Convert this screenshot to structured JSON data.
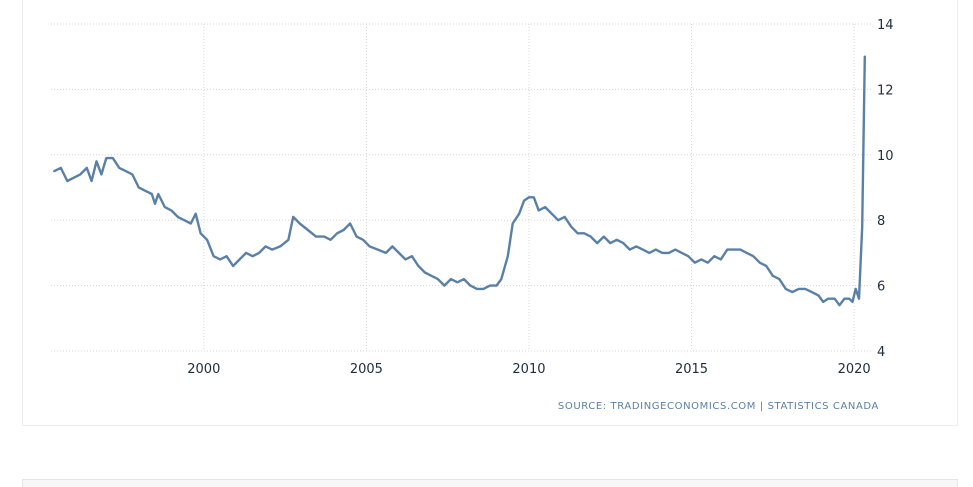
{
  "source": {
    "prefix": "SOURCE:",
    "provider": "TRADINGECONOMICS.COM",
    "separator": "|",
    "origin": "STATISTICS CANADA"
  },
  "colors": {
    "line": "#5b80a8",
    "grid": "#d6d6d6",
    "text": "#1f2d3d",
    "source": "#5a7fa6"
  },
  "chart_data": {
    "type": "line",
    "title": "",
    "xlabel": "",
    "ylabel": "",
    "xlim": [
      1995.3,
      2020.55
    ],
    "ylim": [
      4,
      14
    ],
    "x_ticks": [
      2000,
      2005,
      2010,
      2015,
      2020
    ],
    "x_tick_labels": [
      "2000",
      "2005",
      "2010",
      "2015",
      "2020"
    ],
    "y_ticks": [
      4,
      6,
      8,
      10,
      12,
      14
    ],
    "y_tick_labels": [
      "4",
      "6",
      "8",
      "10",
      "12",
      "14"
    ],
    "y_axis_position": "right",
    "grid": true,
    "legend": "none",
    "series": [
      {
        "points": [
          [
            1995.4,
            9.5
          ],
          [
            1995.6,
            9.6
          ],
          [
            1995.8,
            9.2
          ],
          [
            1996.0,
            9.3
          ],
          [
            1996.2,
            9.4
          ],
          [
            1996.4,
            9.6
          ],
          [
            1996.55,
            9.2
          ],
          [
            1996.7,
            9.8
          ],
          [
            1996.85,
            9.4
          ],
          [
            1997.0,
            9.9
          ],
          [
            1997.2,
            9.9
          ],
          [
            1997.4,
            9.6
          ],
          [
            1997.6,
            9.5
          ],
          [
            1997.8,
            9.4
          ],
          [
            1998.0,
            9.0
          ],
          [
            1998.2,
            8.9
          ],
          [
            1998.4,
            8.8
          ],
          [
            1998.5,
            8.5
          ],
          [
            1998.6,
            8.8
          ],
          [
            1998.8,
            8.4
          ],
          [
            1999.0,
            8.3
          ],
          [
            1999.2,
            8.1
          ],
          [
            1999.4,
            8.0
          ],
          [
            1999.6,
            7.9
          ],
          [
            1999.75,
            8.2
          ],
          [
            1999.9,
            7.6
          ],
          [
            2000.1,
            7.4
          ],
          [
            2000.3,
            6.9
          ],
          [
            2000.5,
            6.8
          ],
          [
            2000.7,
            6.9
          ],
          [
            2000.9,
            6.6
          ],
          [
            2001.1,
            6.8
          ],
          [
            2001.3,
            7.0
          ],
          [
            2001.5,
            6.9
          ],
          [
            2001.7,
            7.0
          ],
          [
            2001.9,
            7.2
          ],
          [
            2002.1,
            7.1
          ],
          [
            2002.35,
            7.2
          ],
          [
            2002.6,
            7.4
          ],
          [
            2002.75,
            8.1
          ],
          [
            2002.95,
            7.9
          ],
          [
            2003.2,
            7.7
          ],
          [
            2003.45,
            7.5
          ],
          [
            2003.7,
            7.5
          ],
          [
            2003.9,
            7.4
          ],
          [
            2004.1,
            7.6
          ],
          [
            2004.3,
            7.7
          ],
          [
            2004.5,
            7.9
          ],
          [
            2004.7,
            7.5
          ],
          [
            2004.9,
            7.4
          ],
          [
            2005.1,
            7.2
          ],
          [
            2005.35,
            7.1
          ],
          [
            2005.6,
            7.0
          ],
          [
            2005.8,
            7.2
          ],
          [
            2006.0,
            7.0
          ],
          [
            2006.2,
            6.8
          ],
          [
            2006.4,
            6.9
          ],
          [
            2006.6,
            6.6
          ],
          [
            2006.8,
            6.4
          ],
          [
            2007.0,
            6.3
          ],
          [
            2007.2,
            6.2
          ],
          [
            2007.4,
            6.0
          ],
          [
            2007.6,
            6.2
          ],
          [
            2007.8,
            6.1
          ],
          [
            2008.0,
            6.2
          ],
          [
            2008.2,
            6.0
          ],
          [
            2008.4,
            5.9
          ],
          [
            2008.6,
            5.9
          ],
          [
            2008.8,
            6.0
          ],
          [
            2009.0,
            6.0
          ],
          [
            2009.15,
            6.2
          ],
          [
            2009.35,
            6.9
          ],
          [
            2009.5,
            7.9
          ],
          [
            2009.7,
            8.2
          ],
          [
            2009.85,
            8.6
          ],
          [
            2010.0,
            8.7
          ],
          [
            2010.15,
            8.7
          ],
          [
            2010.3,
            8.3
          ],
          [
            2010.5,
            8.4
          ],
          [
            2010.7,
            8.2
          ],
          [
            2010.9,
            8.0
          ],
          [
            2011.1,
            8.1
          ],
          [
            2011.3,
            7.8
          ],
          [
            2011.5,
            7.6
          ],
          [
            2011.7,
            7.6
          ],
          [
            2011.9,
            7.5
          ],
          [
            2012.1,
            7.3
          ],
          [
            2012.3,
            7.5
          ],
          [
            2012.5,
            7.3
          ],
          [
            2012.7,
            7.4
          ],
          [
            2012.9,
            7.3
          ],
          [
            2013.1,
            7.1
          ],
          [
            2013.3,
            7.2
          ],
          [
            2013.5,
            7.1
          ],
          [
            2013.7,
            7.0
          ],
          [
            2013.9,
            7.1
          ],
          [
            2014.1,
            7.0
          ],
          [
            2014.3,
            7.0
          ],
          [
            2014.5,
            7.1
          ],
          [
            2014.7,
            7.0
          ],
          [
            2014.9,
            6.9
          ],
          [
            2015.1,
            6.7
          ],
          [
            2015.3,
            6.8
          ],
          [
            2015.5,
            6.7
          ],
          [
            2015.7,
            6.9
          ],
          [
            2015.9,
            6.8
          ],
          [
            2016.1,
            7.1
          ],
          [
            2016.3,
            7.1
          ],
          [
            2016.5,
            7.1
          ],
          [
            2016.7,
            7.0
          ],
          [
            2016.9,
            6.9
          ],
          [
            2017.1,
            6.7
          ],
          [
            2017.3,
            6.6
          ],
          [
            2017.5,
            6.3
          ],
          [
            2017.7,
            6.2
          ],
          [
            2017.9,
            5.9
          ],
          [
            2018.1,
            5.8
          ],
          [
            2018.3,
            5.9
          ],
          [
            2018.5,
            5.9
          ],
          [
            2018.7,
            5.8
          ],
          [
            2018.9,
            5.7
          ],
          [
            2019.05,
            5.5
          ],
          [
            2019.2,
            5.6
          ],
          [
            2019.4,
            5.6
          ],
          [
            2019.55,
            5.4
          ],
          [
            2019.7,
            5.6
          ],
          [
            2019.85,
            5.6
          ],
          [
            2019.95,
            5.5
          ],
          [
            2020.05,
            5.9
          ],
          [
            2020.15,
            5.6
          ],
          [
            2020.25,
            7.8
          ],
          [
            2020.33,
            13.0
          ]
        ]
      }
    ]
  }
}
